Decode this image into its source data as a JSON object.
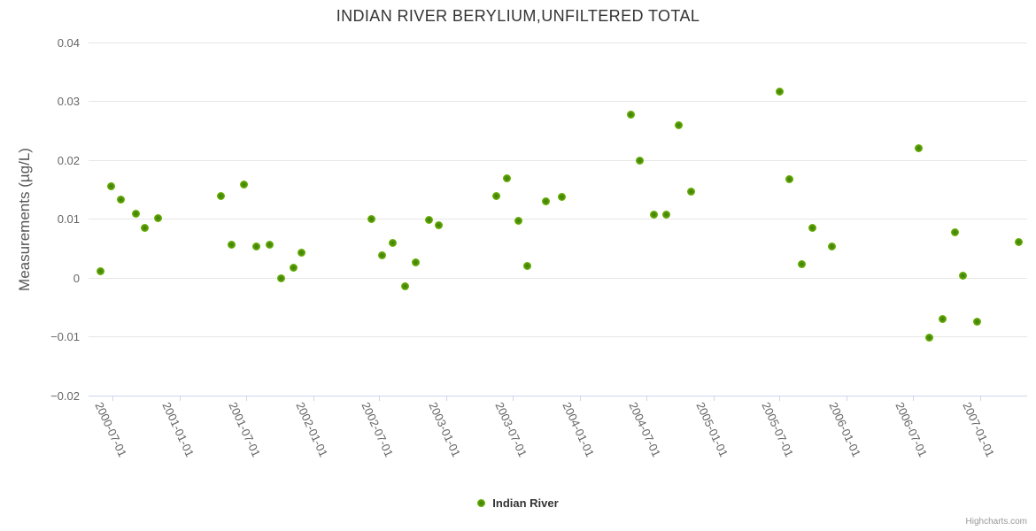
{
  "title": "INDIAN RIVER BERYLIUM,UNFILTERED TOTAL",
  "legend": {
    "label": "Indian River"
  },
  "credits": "Highcharts.com",
  "colors": {
    "marker_green": "#7cc500",
    "marker_center_green": "#3d7c08",
    "grid": "#e6e6e6",
    "axis_line": "#ccd6eb",
    "tick_label": "#666666",
    "title_text": "#333333"
  },
  "chart_data": {
    "type": "scatter",
    "title": "INDIAN RIVER BERYLIUM,UNFILTERED TOTAL",
    "xlabel": "",
    "ylabel": "Measurements (µg/L)",
    "ylim": [
      -0.02,
      0.04
    ],
    "grid": "horizontal",
    "legend_position": "bottom-center",
    "y_ticks": [
      {
        "value": 0.04,
        "label": "0.04"
      },
      {
        "value": 0.03,
        "label": "0.03"
      },
      {
        "value": 0.02,
        "label": "0.02"
      },
      {
        "value": 0.01,
        "label": "0.01"
      },
      {
        "value": 0,
        "label": "0"
      },
      {
        "value": -0.01,
        "label": "−0.01"
      },
      {
        "value": -0.02,
        "label": "−0.02"
      }
    ],
    "x_ticks": [
      "2000-07-01",
      "2001-01-01",
      "2001-07-01",
      "2002-01-01",
      "2002-07-01",
      "2003-01-01",
      "2003-07-01",
      "2004-01-01",
      "2004-07-01",
      "2005-01-01",
      "2005-07-01",
      "2006-01-01",
      "2006-07-01",
      "2007-01-01"
    ],
    "series": [
      {
        "name": "Indian River",
        "color": "#7cc500",
        "data": [
          [
            "2000-05-30",
            0.0011
          ],
          [
            "2000-06-28",
            0.0155
          ],
          [
            "2000-07-23",
            0.0133
          ],
          [
            "2000-09-03",
            0.0109
          ],
          [
            "2000-09-27",
            0.0085
          ],
          [
            "2000-11-04",
            0.0102
          ],
          [
            "2001-04-23",
            0.0139
          ],
          [
            "2001-05-22",
            0.0057
          ],
          [
            "2001-06-27",
            0.0158
          ],
          [
            "2001-07-29",
            0.0054
          ],
          [
            "2001-09-04",
            0.0056
          ],
          [
            "2001-10-05",
            0.0
          ],
          [
            "2001-11-08",
            0.0017
          ],
          [
            "2001-12-01",
            0.0043
          ],
          [
            "2002-06-10",
            0.01
          ],
          [
            "2002-07-10",
            0.0039
          ],
          [
            "2002-08-08",
            0.006
          ],
          [
            "2002-09-11",
            -0.0014
          ],
          [
            "2002-10-09",
            0.0027
          ],
          [
            "2002-11-15",
            0.0099
          ],
          [
            "2002-12-10",
            0.009
          ],
          [
            "2003-05-18",
            0.0139
          ],
          [
            "2003-06-15",
            0.0169
          ],
          [
            "2003-07-17",
            0.0097
          ],
          [
            "2003-08-11",
            0.002
          ],
          [
            "2003-10-01",
            0.013
          ],
          [
            "2003-11-13",
            0.0138
          ],
          [
            "2004-05-21",
            0.0278
          ],
          [
            "2004-06-14",
            0.0199
          ],
          [
            "2004-07-23",
            0.0108
          ],
          [
            "2004-08-26",
            0.0107
          ],
          [
            "2004-09-29",
            0.0259
          ],
          [
            "2004-10-31",
            0.0147
          ],
          [
            "2005-07-02",
            0.0317
          ],
          [
            "2005-07-28",
            0.0167
          ],
          [
            "2005-08-30",
            0.0023
          ],
          [
            "2005-09-28",
            0.0085
          ],
          [
            "2005-11-21",
            0.0053
          ],
          [
            "2006-07-17",
            0.022
          ],
          [
            "2006-08-16",
            -0.0102
          ],
          [
            "2006-09-21",
            -0.007
          ],
          [
            "2006-10-23",
            0.0077
          ],
          [
            "2006-11-16",
            0.0004
          ],
          [
            "2006-12-24",
            -0.0074
          ],
          [
            "2007-04-16",
            0.0061
          ]
        ]
      }
    ]
  }
}
